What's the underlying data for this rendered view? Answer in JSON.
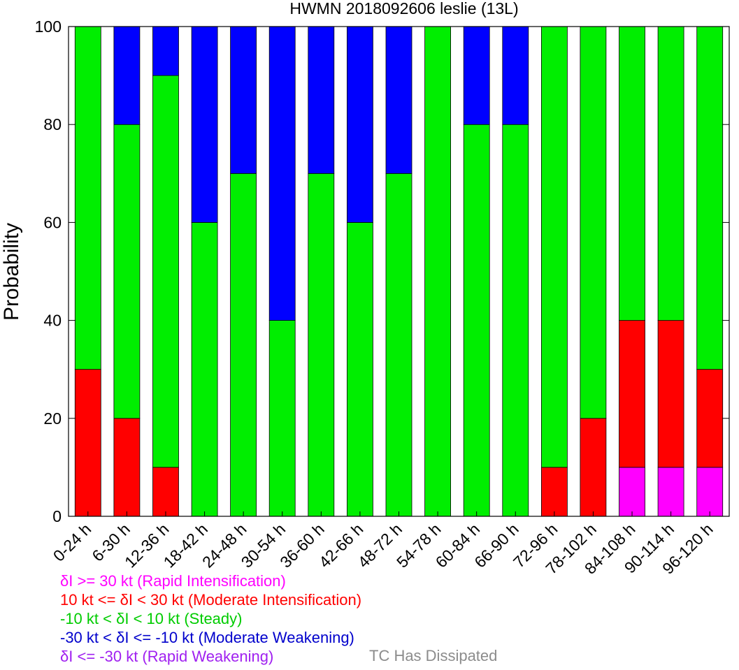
{
  "chart_data": {
    "type": "bar",
    "stacked": true,
    "title": "HWMN 2018092606 leslie (13L)",
    "xlabel": "",
    "ylabel": "Probability",
    "ylim": [
      0,
      100
    ],
    "yticks": [
      0,
      20,
      40,
      60,
      80,
      100
    ],
    "grid": false,
    "categories": [
      "0-24 h",
      "6-30 h",
      "12-36 h",
      "18-42 h",
      "24-48 h",
      "30-54 h",
      "36-60 h",
      "42-66 h",
      "48-72 h",
      "54-78 h",
      "60-84 h",
      "66-90 h",
      "72-96 h",
      "78-102 h",
      "84-108 h",
      "90-114 h",
      "96-120 h"
    ],
    "series": [
      {
        "key": "rapid_weakening",
        "color": "#a020f0",
        "values": [
          0,
          0,
          0,
          0,
          0,
          0,
          0,
          0,
          0,
          0,
          0,
          0,
          0,
          0,
          0,
          0,
          0
        ]
      },
      {
        "key": "rapid_intensification",
        "color": "#ff00ff",
        "values": [
          0,
          0,
          0,
          0,
          0,
          0,
          0,
          0,
          0,
          0,
          0,
          0,
          0,
          0,
          10,
          10,
          10
        ]
      },
      {
        "key": "moderate_intensification",
        "color": "#ff0000",
        "values": [
          30,
          20,
          10,
          0,
          0,
          0,
          0,
          0,
          0,
          0,
          0,
          0,
          10,
          20,
          30,
          30,
          20
        ]
      },
      {
        "key": "steady",
        "color": "#00ee00",
        "values": [
          70,
          60,
          80,
          60,
          70,
          40,
          70,
          60,
          70,
          100,
          80,
          80,
          90,
          80,
          60,
          60,
          70
        ]
      },
      {
        "key": "moderate_weakening",
        "color": "#0000ff",
        "values": [
          0,
          20,
          10,
          40,
          30,
          60,
          30,
          40,
          30,
          0,
          20,
          20,
          0,
          0,
          0,
          0,
          0
        ]
      }
    ]
  },
  "legend": {
    "items": [
      {
        "text": "δI >= 30 kt (Rapid Intensification)",
        "color": "#ff00ff"
      },
      {
        "text": "10 kt <= δI < 30 kt (Moderate Intensification)",
        "color": "#ff0000"
      },
      {
        "text": "-10 kt < δI < 10 kt (Steady)",
        "color": "#00cc00"
      },
      {
        "text": "-30 kt < δI <= -10 kt (Moderate Weakening)",
        "color": "#0000cc"
      },
      {
        "text": "δI <= -30 kt (Rapid Weakening)",
        "color": "#a020f0"
      }
    ],
    "dissipated_text": "TC Has Dissipated",
    "dissipated_color": "#8c8c8c"
  }
}
